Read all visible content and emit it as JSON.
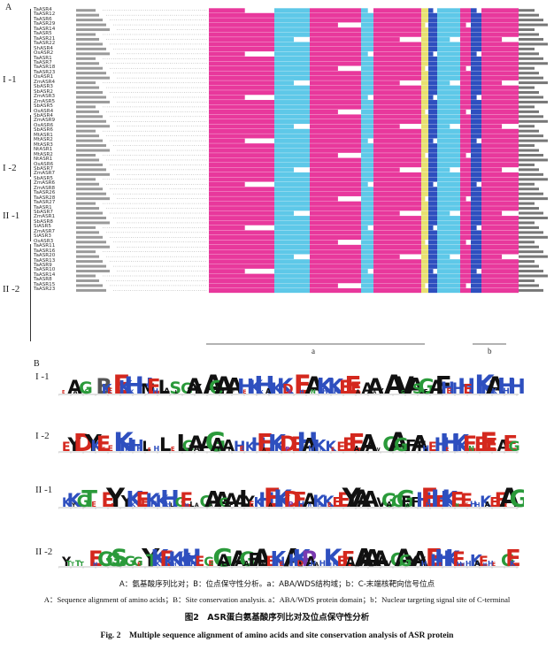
{
  "panel_a": {
    "label": "A",
    "sequence_names": [
      "TaASR4",
      "TaASR12",
      "TaASR6",
      "TaASR29",
      "TaASR14",
      "TaASR5",
      "TaASR21",
      "TaASR22",
      "ShASR4",
      "OsASR2",
      "TaASR1",
      "TaASR7",
      "TaASR18",
      "TaASR23",
      "OsASR1",
      "ZmASR4",
      "SbASR3",
      "SbASR2",
      "ZmASR3",
      "ZmASR5",
      "SbASR5",
      "OsASR4",
      "SbASR4",
      "ZmASR9",
      "OsASR6",
      "SbASR6",
      "MtASR1",
      "MtASR2",
      "MtASR3",
      "NtASR1",
      "MtASR2",
      "NtASR1",
      "OsASR6",
      "SbASR7",
      "ZmASR7",
      "SbASR5",
      "ZmASR6",
      "ZmASR8",
      "TaASR26",
      "TaASR28",
      "TaASR27",
      "TaASR1",
      "SbASR7",
      "ZmASR1",
      "SbASR8",
      "SiASR5",
      "ZmASR7",
      "SiASR3",
      "OsASR3",
      "TaASR11",
      "TaASR16",
      "TaASR20",
      "TaASR13",
      "TaASR9",
      "TaASR10",
      "TaASR14",
      "TaASR8",
      "TaASR15",
      "TaASR23"
    ],
    "group_labels": [
      "I -1",
      "I -2",
      "II -1",
      "II -2"
    ],
    "domain_labels": [
      "a",
      "b"
    ]
  },
  "panel_b": {
    "label": "B",
    "logo_labels": [
      "I -1",
      "I -2",
      "II -1",
      "II -2"
    ],
    "logo_sequences": [
      "EAaGS BKEEKHKHMEhLaSLGAYAAGAYAfHEKHkAKKDPEhAnKhKKEEEaAAaYA VGASGFAFHEHHEKKHAKHhH",
      "EYD YKEEeKHKHhLEhL eLGAAAGAYAfHEKHEAKKDPEHAhKhKEEEEAAA VGAGGFAFHEHHEKKEnEEEEAEG",
      "KKYGT E EYE YKKEEKHKHhLGEhLaGAAAGAFALYEKHEAKKDPEhAhKhKEEEYAAAAA VGAGGFAFHEHHEKKEnEEhhKAEEAEG",
      "Ytttt EhG GSggG GEYTKKEKKHKHKhE GEGAlAAAGAFALYEKHEAKKDPAhAhKhKEEAVAAAAAA VGAGGYAYHEHHEKKEhhhKaEhhE GEK"
    ]
  },
  "caption": {
    "cn_sub": "A：氨基酸序列比对；B：位点保守性分析。a：ABA/WDS结构域；b：C-末端核靶向信号位点",
    "en_sub": "A：Sequence alignment of amino acids；B：Site conservation analysis. a：ABA/WDS protein domain；b：Nuclear targeting signal site of C-terminal",
    "cn_title": "图2　ASR蛋白氨基酸序列比对及位点保守性分析",
    "en_title": "Fig. 2　Multiple sequence alignment of amino acids and site conservation analysis of ASR protein"
  },
  "colors": {
    "pink": "#e8389c",
    "cyan": "#5ec8e8",
    "blue": "#2e4fbf",
    "yellow": "#e8e070",
    "green": "#2a9a3a",
    "black": "#111111"
  }
}
